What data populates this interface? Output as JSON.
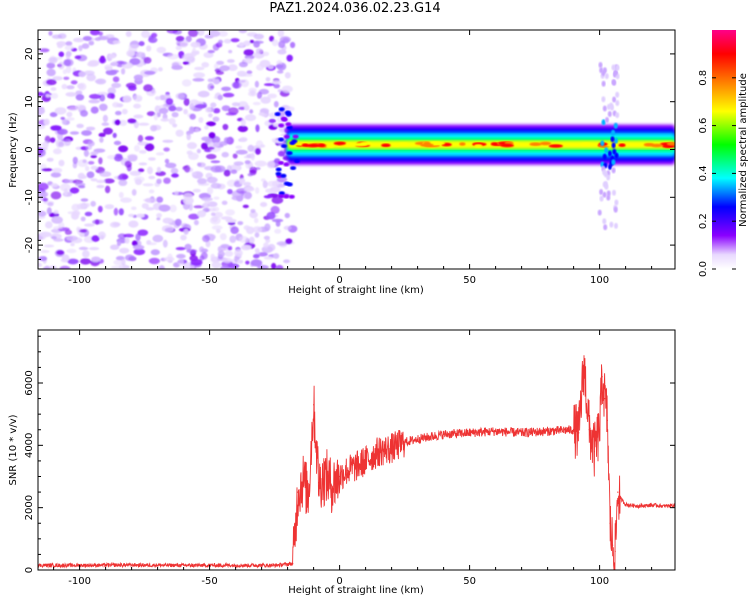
{
  "title": "PAZ1.2024.036.02.23.G14",
  "chart_data": [
    {
      "type": "heatmap",
      "xlabel": "Height of straight line (km)",
      "ylabel": "Frequency (Hz)",
      "xlim": [
        -116,
        129
      ],
      "ylim": [
        -25,
        25
      ],
      "xticks": [
        -100,
        -50,
        0,
        50,
        100
      ],
      "yticks": [
        -20,
        -10,
        0,
        10,
        20
      ],
      "colorbar": {
        "label": "Normalized spectral amplitude",
        "range": [
          0,
          1
        ],
        "ticks": [
          0.0,
          0.2,
          0.4,
          0.6,
          0.8
        ],
        "colormap": [
          "#ffffff",
          "#8a00ff",
          "#0000ff",
          "#00ffff",
          "#00ff00",
          "#ffff00",
          "#ff8000",
          "#ff0000",
          "#ff0080"
        ]
      },
      "regions": [
        {
          "x": [
            -116,
            -20
          ],
          "freq_range": [
            -25,
            25
          ],
          "amplitude": 0.1,
          "description_level": "scattered noise"
        },
        {
          "x": [
            -20,
            129
          ],
          "freq_center": 1.0,
          "freq_width": 3,
          "amplitude": 0.95
        },
        {
          "x": [
            100,
            107
          ],
          "freq_range": [
            -17,
            18
          ],
          "amplitude": 0.25
        }
      ],
      "grid": false
    },
    {
      "type": "line",
      "xlabel": "Height of straight line (km)",
      "ylabel": "SNR (10 * v/v)",
      "xlim": [
        -116,
        129
      ],
      "ylim": [
        0,
        7700
      ],
      "xticks": [
        -100,
        -50,
        0,
        50,
        100
      ],
      "yticks": [
        0,
        2000,
        4000,
        6000
      ],
      "color": "#ee3333",
      "series": [
        {
          "x": [
            -116,
            -100,
            -80,
            -60,
            -40,
            -25,
            -18,
            -16,
            -14,
            -12,
            -10,
            -8,
            -5,
            -3,
            0,
            3,
            6,
            10,
            15,
            20,
            25,
            30,
            40,
            50,
            60,
            70,
            80,
            90,
            92,
            94,
            96,
            98,
            100,
            101,
            102,
            103,
            104,
            105,
            106,
            107,
            108,
            110,
            115,
            120,
            125,
            129
          ],
          "y": [
            150,
            150,
            160,
            150,
            150,
            150,
            200,
            2500,
            2900,
            2400,
            5300,
            2800,
            3000,
            2700,
            3000,
            3200,
            3300,
            3500,
            3800,
            3900,
            4100,
            4200,
            4350,
            4400,
            4450,
            4400,
            4450,
            4500,
            4400,
            6600,
            4500,
            3800,
            4500,
            6200,
            5500,
            4800,
            1500,
            800,
            600,
            2500,
            2300,
            2100,
            2050,
            2080,
            2050,
            2080
          ]
        }
      ],
      "grid": false
    }
  ]
}
